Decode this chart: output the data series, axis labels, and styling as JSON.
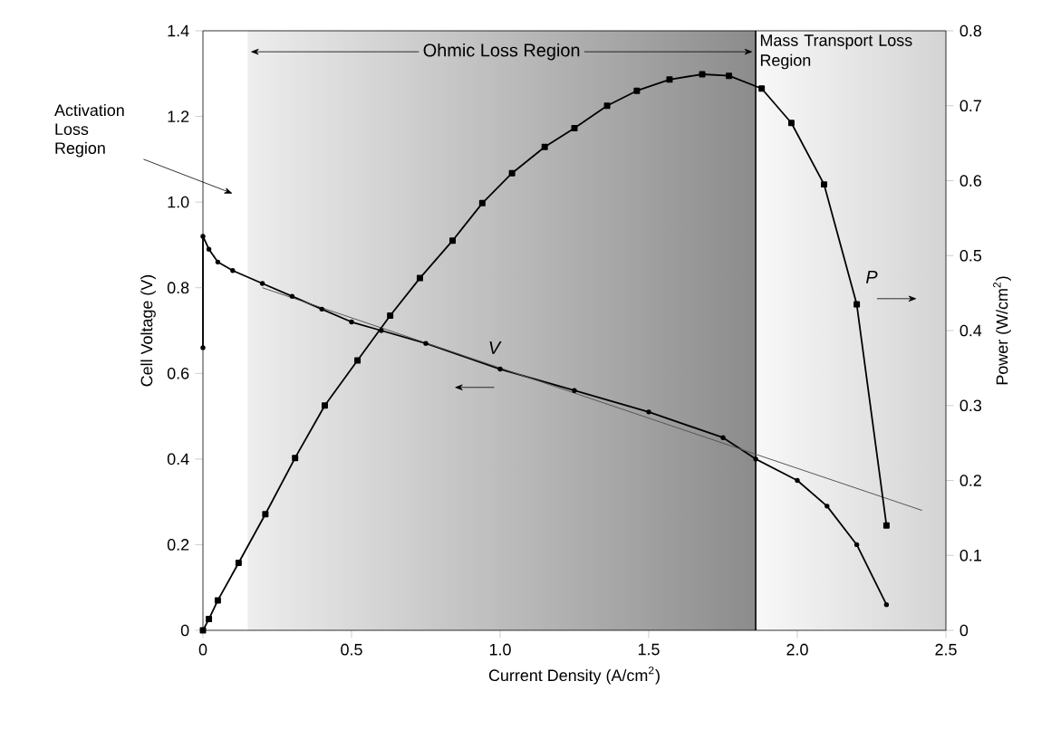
{
  "chart_data": {
    "type": "line",
    "xlabel": "Current Density (A/cm$^{2}$)",
    "ylabel": "Cell Voltage  (V)",
    "y2label": "Power (W/cm$^{2}$)",
    "xlim": [
      0,
      2.5
    ],
    "xticks": [
      0,
      0.5,
      {
        "value": 1,
        "label": "1.0"
      },
      1.5,
      {
        "value": 2,
        "label": "2.0"
      },
      2.5
    ],
    "ylim": [
      0,
      1.4
    ],
    "yticks": [
      0,
      0.2,
      0.4,
      0.6,
      0.8,
      {
        "value": 1,
        "label": "1.0"
      },
      1.2,
      1.4
    ],
    "y2lim": [
      0,
      0.8
    ],
    "y2ticks": [
      0,
      0.1,
      0.2,
      0.3,
      0.4,
      0.5,
      0.6,
      0.7,
      0.8
    ],
    "grid": false,
    "series": [
      {
        "color": "#000000",
        "marker": "circle",
        "x": [
          0,
          0,
          0.02,
          0.05,
          0.1,
          0.2,
          0.3,
          0.4,
          0.5,
          0.6,
          0.75,
          1.0,
          1.25,
          1.5,
          1.75,
          1.86,
          2.0,
          2.1,
          2.2,
          2.3
        ],
        "values": [
          0.66,
          0.92,
          0.89,
          0.86,
          0.84,
          0.81,
          0.78,
          0.75,
          0.72,
          0.7,
          0.67,
          0.61,
          0.56,
          0.51,
          0.45,
          0.4,
          0.35,
          0.29,
          0.2,
          0.06
        ]
      },
      {
        "color": "#000000",
        "marker": "square",
        "axis": "y2",
        "x": [
          0,
          0.02,
          0.05,
          0.12,
          0.21,
          0.31,
          0.41,
          0.52,
          0.63,
          0.73,
          0.84,
          0.94,
          1.04,
          1.15,
          1.25,
          1.36,
          1.46,
          1.57,
          1.68,
          1.77,
          1.88,
          1.98,
          2.09,
          2.2,
          2.3
        ],
        "values": [
          0,
          0.015,
          0.04,
          0.09,
          0.155,
          0.23,
          0.3,
          0.36,
          0.42,
          0.47,
          0.52,
          0.57,
          0.61,
          0.645,
          0.67,
          0.7,
          0.72,
          0.735,
          0.742,
          0.74,
          0.723,
          0.677,
          0.595,
          0.435,
          0.14
        ]
      },
      {
        "color": "#555555",
        "marker": "none",
        "x": [
          0.2,
          2.42
        ],
        "values": [
          0.8,
          0.28
        ]
      }
    ],
    "bands": [
      {
        "axis": "x",
        "from": 0.15,
        "to": 1.86,
        "label": "Ohmic Loss Region",
        "color": "#8c8c8c"
      },
      {
        "axis": "x",
        "from": 1.86,
        "to": 2.5,
        "label": "Mass Transport Loss Region",
        "color": "#d4d4d4"
      }
    ],
    "ref_lines": [
      {
        "axis": "x",
        "value": 1.86,
        "color": "#000000"
      }
    ],
    "annotations": [
      "Activation Loss Region",
      "V",
      "P"
    ]
  }
}
